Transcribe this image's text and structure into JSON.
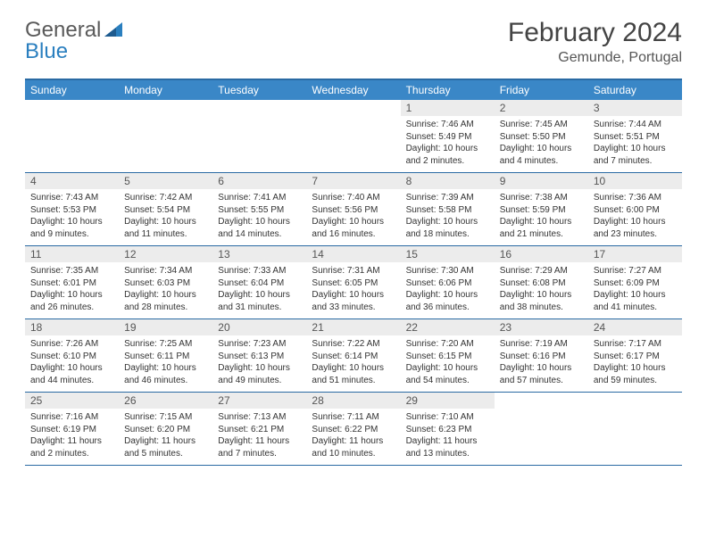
{
  "logo": {
    "line1": "General",
    "line2": "Blue"
  },
  "title": "February 2024",
  "location": "Gemunde, Portugal",
  "colors": {
    "header_bg": "#3a87c7",
    "border": "#2a6aa3",
    "daynum_bg": "#ececec"
  },
  "weekdays": [
    "Sunday",
    "Monday",
    "Tuesday",
    "Wednesday",
    "Thursday",
    "Friday",
    "Saturday"
  ],
  "weeks": [
    [
      {
        "n": "",
        "empty": true
      },
      {
        "n": "",
        "empty": true
      },
      {
        "n": "",
        "empty": true
      },
      {
        "n": "",
        "empty": true
      },
      {
        "n": "1",
        "sunrise": "Sunrise: 7:46 AM",
        "sunset": "Sunset: 5:49 PM",
        "day1": "Daylight: 10 hours",
        "day2": "and 2 minutes."
      },
      {
        "n": "2",
        "sunrise": "Sunrise: 7:45 AM",
        "sunset": "Sunset: 5:50 PM",
        "day1": "Daylight: 10 hours",
        "day2": "and 4 minutes."
      },
      {
        "n": "3",
        "sunrise": "Sunrise: 7:44 AM",
        "sunset": "Sunset: 5:51 PM",
        "day1": "Daylight: 10 hours",
        "day2": "and 7 minutes."
      }
    ],
    [
      {
        "n": "4",
        "sunrise": "Sunrise: 7:43 AM",
        "sunset": "Sunset: 5:53 PM",
        "day1": "Daylight: 10 hours",
        "day2": "and 9 minutes."
      },
      {
        "n": "5",
        "sunrise": "Sunrise: 7:42 AM",
        "sunset": "Sunset: 5:54 PM",
        "day1": "Daylight: 10 hours",
        "day2": "and 11 minutes."
      },
      {
        "n": "6",
        "sunrise": "Sunrise: 7:41 AM",
        "sunset": "Sunset: 5:55 PM",
        "day1": "Daylight: 10 hours",
        "day2": "and 14 minutes."
      },
      {
        "n": "7",
        "sunrise": "Sunrise: 7:40 AM",
        "sunset": "Sunset: 5:56 PM",
        "day1": "Daylight: 10 hours",
        "day2": "and 16 minutes."
      },
      {
        "n": "8",
        "sunrise": "Sunrise: 7:39 AM",
        "sunset": "Sunset: 5:58 PM",
        "day1": "Daylight: 10 hours",
        "day2": "and 18 minutes."
      },
      {
        "n": "9",
        "sunrise": "Sunrise: 7:38 AM",
        "sunset": "Sunset: 5:59 PM",
        "day1": "Daylight: 10 hours",
        "day2": "and 21 minutes."
      },
      {
        "n": "10",
        "sunrise": "Sunrise: 7:36 AM",
        "sunset": "Sunset: 6:00 PM",
        "day1": "Daylight: 10 hours",
        "day2": "and 23 minutes."
      }
    ],
    [
      {
        "n": "11",
        "sunrise": "Sunrise: 7:35 AM",
        "sunset": "Sunset: 6:01 PM",
        "day1": "Daylight: 10 hours",
        "day2": "and 26 minutes."
      },
      {
        "n": "12",
        "sunrise": "Sunrise: 7:34 AM",
        "sunset": "Sunset: 6:03 PM",
        "day1": "Daylight: 10 hours",
        "day2": "and 28 minutes."
      },
      {
        "n": "13",
        "sunrise": "Sunrise: 7:33 AM",
        "sunset": "Sunset: 6:04 PM",
        "day1": "Daylight: 10 hours",
        "day2": "and 31 minutes."
      },
      {
        "n": "14",
        "sunrise": "Sunrise: 7:31 AM",
        "sunset": "Sunset: 6:05 PM",
        "day1": "Daylight: 10 hours",
        "day2": "and 33 minutes."
      },
      {
        "n": "15",
        "sunrise": "Sunrise: 7:30 AM",
        "sunset": "Sunset: 6:06 PM",
        "day1": "Daylight: 10 hours",
        "day2": "and 36 minutes."
      },
      {
        "n": "16",
        "sunrise": "Sunrise: 7:29 AM",
        "sunset": "Sunset: 6:08 PM",
        "day1": "Daylight: 10 hours",
        "day2": "and 38 minutes."
      },
      {
        "n": "17",
        "sunrise": "Sunrise: 7:27 AM",
        "sunset": "Sunset: 6:09 PM",
        "day1": "Daylight: 10 hours",
        "day2": "and 41 minutes."
      }
    ],
    [
      {
        "n": "18",
        "sunrise": "Sunrise: 7:26 AM",
        "sunset": "Sunset: 6:10 PM",
        "day1": "Daylight: 10 hours",
        "day2": "and 44 minutes."
      },
      {
        "n": "19",
        "sunrise": "Sunrise: 7:25 AM",
        "sunset": "Sunset: 6:11 PM",
        "day1": "Daylight: 10 hours",
        "day2": "and 46 minutes."
      },
      {
        "n": "20",
        "sunrise": "Sunrise: 7:23 AM",
        "sunset": "Sunset: 6:13 PM",
        "day1": "Daylight: 10 hours",
        "day2": "and 49 minutes."
      },
      {
        "n": "21",
        "sunrise": "Sunrise: 7:22 AM",
        "sunset": "Sunset: 6:14 PM",
        "day1": "Daylight: 10 hours",
        "day2": "and 51 minutes."
      },
      {
        "n": "22",
        "sunrise": "Sunrise: 7:20 AM",
        "sunset": "Sunset: 6:15 PM",
        "day1": "Daylight: 10 hours",
        "day2": "and 54 minutes."
      },
      {
        "n": "23",
        "sunrise": "Sunrise: 7:19 AM",
        "sunset": "Sunset: 6:16 PM",
        "day1": "Daylight: 10 hours",
        "day2": "and 57 minutes."
      },
      {
        "n": "24",
        "sunrise": "Sunrise: 7:17 AM",
        "sunset": "Sunset: 6:17 PM",
        "day1": "Daylight: 10 hours",
        "day2": "and 59 minutes."
      }
    ],
    [
      {
        "n": "25",
        "sunrise": "Sunrise: 7:16 AM",
        "sunset": "Sunset: 6:19 PM",
        "day1": "Daylight: 11 hours",
        "day2": "and 2 minutes."
      },
      {
        "n": "26",
        "sunrise": "Sunrise: 7:15 AM",
        "sunset": "Sunset: 6:20 PM",
        "day1": "Daylight: 11 hours",
        "day2": "and 5 minutes."
      },
      {
        "n": "27",
        "sunrise": "Sunrise: 7:13 AM",
        "sunset": "Sunset: 6:21 PM",
        "day1": "Daylight: 11 hours",
        "day2": "and 7 minutes."
      },
      {
        "n": "28",
        "sunrise": "Sunrise: 7:11 AM",
        "sunset": "Sunset: 6:22 PM",
        "day1": "Daylight: 11 hours",
        "day2": "and 10 minutes."
      },
      {
        "n": "29",
        "sunrise": "Sunrise: 7:10 AM",
        "sunset": "Sunset: 6:23 PM",
        "day1": "Daylight: 11 hours",
        "day2": "and 13 minutes."
      },
      {
        "n": "",
        "empty": true
      },
      {
        "n": "",
        "empty": true
      }
    ]
  ]
}
